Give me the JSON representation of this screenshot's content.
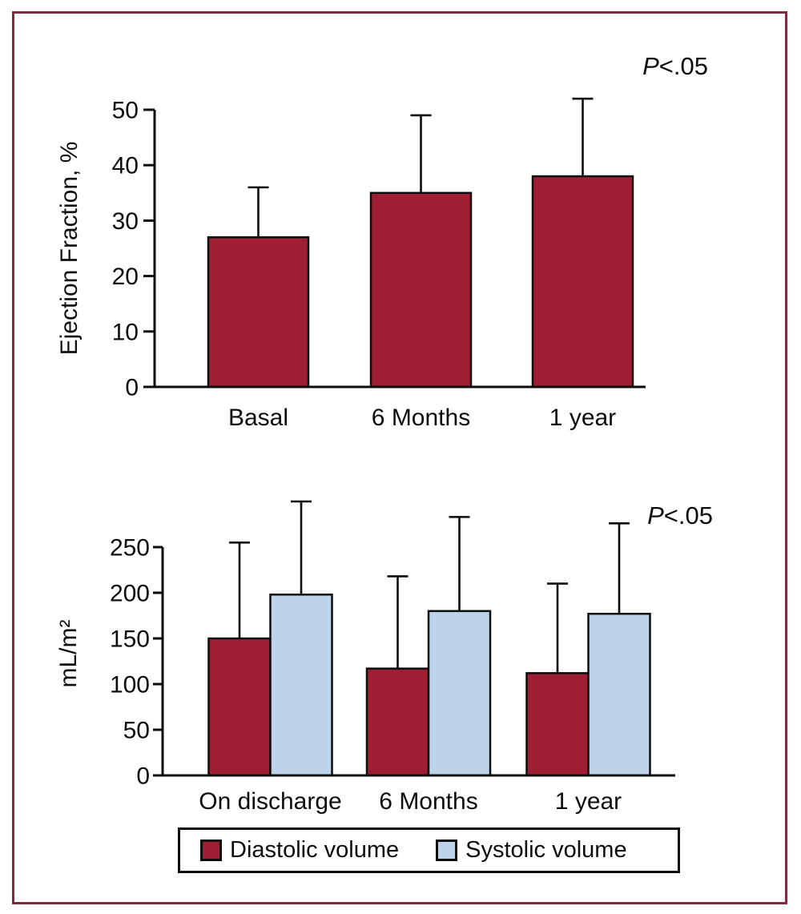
{
  "colors": {
    "bar_red": "#A01E33",
    "bar_blue": "#BCD3EA",
    "frame": "#812B3E",
    "axis": "#0d0d0d"
  },
  "chart_data": [
    {
      "type": "bar",
      "title": "",
      "categories": [
        "Basal",
        "6 Months",
        "1 year"
      ],
      "series": [
        {
          "name": "Ejection fraction",
          "color_key": "bar_red",
          "values": [
            27,
            35,
            38
          ],
          "error_upper": [
            36,
            49,
            52
          ]
        }
      ],
      "xlabel": "",
      "ylabel": "Ejection Fraction, %",
      "ylim": [
        0,
        50
      ],
      "yticks": [
        0,
        10,
        20,
        30,
        40,
        50
      ],
      "annotation": "P<.05",
      "grid": false,
      "legend_position": "none"
    },
    {
      "type": "bar",
      "title": "",
      "categories": [
        "On discharge",
        "6 Months",
        "1 year"
      ],
      "series": [
        {
          "name": "Diastolic volume",
          "color_key": "bar_red",
          "values": [
            150,
            117,
            112
          ],
          "error_upper": [
            255,
            218,
            210
          ]
        },
        {
          "name": "Systolic volume",
          "color_key": "bar_blue",
          "values": [
            198,
            180,
            177
          ],
          "error_upper": [
            300,
            283,
            276
          ]
        }
      ],
      "xlabel": "",
      "ylabel": "mL/m²",
      "ylim": [
        0,
        250
      ],
      "yticks": [
        0,
        50,
        100,
        150,
        200,
        250
      ],
      "annotation": "P<.05",
      "grid": false,
      "legend_position": "bottom"
    }
  ],
  "legend": {
    "items": [
      {
        "label": "Diastolic volume",
        "color_key": "bar_red"
      },
      {
        "label": "Systolic volume",
        "color_key": "bar_blue"
      }
    ]
  }
}
